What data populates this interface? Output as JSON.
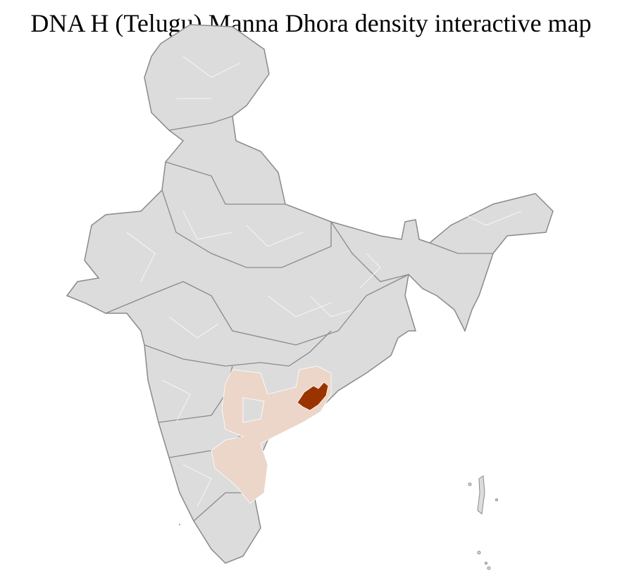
{
  "title": "DNA H (Telugu) Manna Dhora density interactive map",
  "map": {
    "region": "India",
    "colors": {
      "no_data": "#dcdcdc",
      "low_density": "#ecd6c9",
      "high_density": "#993300",
      "district_border": "#ffffff",
      "state_border": "#8a8a8a"
    }
  }
}
